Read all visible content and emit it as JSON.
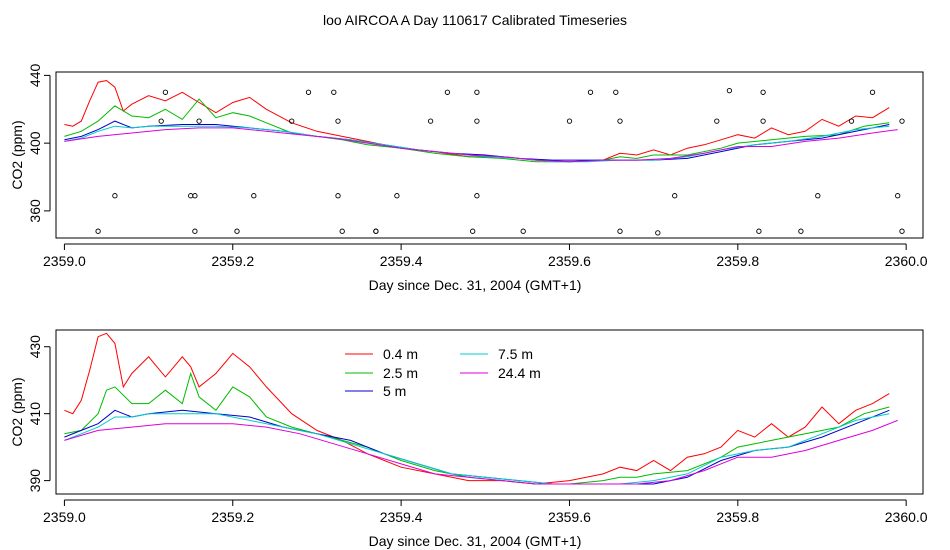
{
  "title": "loo AIRCOA A  Day 110617  Calibrated Timeseries",
  "chart_data": [
    {
      "type": "line",
      "xlabel": "Day since Dec. 31, 2004 (GMT+1)",
      "ylabel": "CO2 (ppm)",
      "xlim": [
        2358.99,
        2360.02
      ],
      "ylim": [
        344,
        442
      ],
      "x_ticks": [
        "2359.0",
        "2359.2",
        "2359.4",
        "2359.6",
        "2359.8",
        "2360.0"
      ],
      "y_ticks": [
        "360",
        "400",
        "440"
      ],
      "grid": false,
      "series": [
        {
          "name": "0.4 m",
          "color": "#ff0000",
          "x": [
            2359.0,
            2359.01,
            2359.02,
            2359.03,
            2359.04,
            2359.05,
            2359.06,
            2359.07,
            2359.08,
            2359.1,
            2359.12,
            2359.14,
            2359.16,
            2359.18,
            2359.2,
            2359.22,
            2359.24,
            2359.27,
            2359.3,
            2359.33,
            2359.36,
            2359.4,
            2359.44,
            2359.48,
            2359.52,
            2359.56,
            2359.6,
            2359.64,
            2359.66,
            2359.68,
            2359.7,
            2359.72,
            2359.74,
            2359.76,
            2359.78,
            2359.8,
            2359.82,
            2359.84,
            2359.86,
            2359.88,
            2359.9,
            2359.92,
            2359.94,
            2359.96,
            2359.98
          ],
          "y": [
            411,
            410,
            413,
            425,
            436,
            437,
            433,
            419,
            423,
            428,
            425,
            430,
            424,
            418,
            424,
            427,
            420,
            412,
            407,
            404,
            401,
            397,
            395,
            392,
            392,
            390,
            389,
            390,
            394,
            393,
            396,
            393,
            397,
            399,
            402,
            405,
            403,
            409,
            405,
            407,
            414,
            410,
            416,
            415,
            421
          ]
        },
        {
          "name": "2.5 m",
          "color": "#00bb00",
          "x": [
            2359.0,
            2359.02,
            2359.04,
            2359.06,
            2359.08,
            2359.1,
            2359.12,
            2359.14,
            2359.16,
            2359.18,
            2359.2,
            2359.22,
            2359.24,
            2359.27,
            2359.3,
            2359.33,
            2359.36,
            2359.4,
            2359.44,
            2359.48,
            2359.52,
            2359.56,
            2359.6,
            2359.64,
            2359.66,
            2359.68,
            2359.7,
            2359.74,
            2359.78,
            2359.8,
            2359.84,
            2359.88,
            2359.92,
            2359.95,
            2359.98
          ],
          "y": [
            404,
            407,
            413,
            422,
            416,
            415,
            420,
            414,
            426,
            415,
            418,
            416,
            412,
            406,
            404,
            402,
            399,
            397,
            394,
            392,
            391,
            389,
            389,
            390,
            392,
            391,
            393,
            393,
            397,
            400,
            402,
            404,
            405,
            410,
            412
          ]
        },
        {
          "name": "5 m",
          "color": "#0000cc",
          "x": [
            2359.0,
            2359.02,
            2359.04,
            2359.06,
            2359.08,
            2359.1,
            2359.14,
            2359.18,
            2359.22,
            2359.26,
            2359.3,
            2359.34,
            2359.38,
            2359.42,
            2359.46,
            2359.5,
            2359.54,
            2359.58,
            2359.62,
            2359.66,
            2359.7,
            2359.74,
            2359.78,
            2359.82,
            2359.86,
            2359.9,
            2359.94,
            2359.98
          ],
          "y": [
            402,
            404,
            408,
            413,
            409,
            410,
            411,
            411,
            409,
            407,
            404,
            402,
            399,
            396,
            394,
            393,
            391,
            390,
            390,
            390,
            390,
            391,
            395,
            399,
            401,
            403,
            407,
            411
          ]
        },
        {
          "name": "7.5 m",
          "color": "#00cccc",
          "x": [
            2359.0,
            2359.02,
            2359.04,
            2359.06,
            2359.08,
            2359.1,
            2359.14,
            2359.18,
            2359.22,
            2359.26,
            2359.3,
            2359.34,
            2359.38,
            2359.42,
            2359.46,
            2359.5,
            2359.54,
            2359.58,
            2359.62,
            2359.66,
            2359.7,
            2359.74,
            2359.78,
            2359.82,
            2359.86,
            2359.9,
            2359.94,
            2359.98
          ],
          "y": [
            401,
            403,
            407,
            410,
            409,
            410,
            410,
            410,
            409,
            407,
            404,
            402,
            399,
            396,
            394,
            392,
            391,
            389,
            389,
            390,
            390,
            392,
            396,
            399,
            401,
            404,
            408,
            410
          ]
        },
        {
          "name": "24.4 m",
          "color": "#dd00dd",
          "x": [
            2359.0,
            2359.04,
            2359.08,
            2359.12,
            2359.16,
            2359.2,
            2359.24,
            2359.28,
            2359.32,
            2359.36,
            2359.4,
            2359.44,
            2359.48,
            2359.52,
            2359.56,
            2359.6,
            2359.64,
            2359.68,
            2359.72,
            2359.76,
            2359.8,
            2359.84,
            2359.88,
            2359.92,
            2359.96,
            2359.99
          ],
          "y": [
            401,
            404,
            406,
            408,
            409,
            409,
            407,
            405,
            403,
            400,
            397,
            395,
            393,
            392,
            390,
            389,
            390,
            390,
            391,
            394,
            398,
            398,
            401,
            403,
            406,
            408
          ]
        }
      ],
      "points": {
        "x": [
          2359.04,
          2359.06,
          2359.12,
          2359.155,
          2359.16,
          2359.205,
          2359.225,
          2359.29,
          2359.32,
          2359.325,
          2359.33,
          2359.37,
          2359.395,
          2359.435,
          2359.455,
          2359.485,
          2359.49,
          2359.545,
          2359.6,
          2359.625,
          2359.655,
          2359.66,
          2359.705,
          2359.725,
          2359.775,
          2359.79,
          2359.825,
          2359.83,
          2359.875,
          2359.895,
          2359.935,
          2359.96,
          2359.99,
          2359.995,
          2359.115,
          2359.155,
          2359.27,
          2359.325,
          2359.49,
          2359.66,
          2359.83,
          2359.995,
          2359.15,
          2359.37,
          2359.49
        ],
        "y": [
          348,
          369,
          430,
          348,
          413,
          348,
          369,
          430,
          430,
          369,
          348,
          348,
          369,
          413,
          430,
          348,
          430,
          348,
          413,
          430,
          430,
          348,
          347,
          369,
          413,
          431,
          348,
          430,
          348,
          369,
          413,
          430,
          369,
          348,
          413,
          369,
          413,
          413,
          413,
          413,
          413,
          413,
          369,
          348,
          369
        ]
      }
    },
    {
      "type": "line",
      "xlabel": "Day since Dec. 31, 2004 (GMT+1)",
      "ylabel": "CO2 (ppm)",
      "xlim": [
        2358.99,
        2360.02
      ],
      "ylim": [
        386,
        435
      ],
      "x_ticks": [
        "2359.0",
        "2359.2",
        "2359.4",
        "2359.6",
        "2359.8",
        "2360.0"
      ],
      "y_ticks": [
        "390",
        "410",
        "430"
      ],
      "grid": false,
      "legend": {
        "placement": "top-center",
        "columns": 2
      },
      "series": [
        {
          "name": "0.4 m",
          "color": "#ff0000",
          "x": [
            2359.0,
            2359.01,
            2359.02,
            2359.03,
            2359.04,
            2359.05,
            2359.06,
            2359.07,
            2359.08,
            2359.1,
            2359.12,
            2359.14,
            2359.15,
            2359.16,
            2359.18,
            2359.2,
            2359.22,
            2359.24,
            2359.27,
            2359.3,
            2359.33,
            2359.36,
            2359.4,
            2359.44,
            2359.48,
            2359.52,
            2359.56,
            2359.6,
            2359.64,
            2359.66,
            2359.68,
            2359.7,
            2359.72,
            2359.74,
            2359.76,
            2359.78,
            2359.8,
            2359.82,
            2359.84,
            2359.86,
            2359.88,
            2359.9,
            2359.92,
            2359.94,
            2359.96,
            2359.98
          ],
          "y": [
            411,
            410,
            414,
            423,
            433,
            434,
            431,
            418,
            422,
            427,
            421,
            427,
            424,
            418,
            422,
            428,
            424,
            418,
            410,
            405,
            402,
            398,
            394,
            392,
            390,
            390,
            389,
            390,
            392,
            394,
            393,
            396,
            393,
            397,
            398,
            400,
            405,
            403,
            407,
            403,
            406,
            412,
            407,
            411,
            413,
            416
          ]
        },
        {
          "name": "2.5 m",
          "color": "#00bb00",
          "x": [
            2359.0,
            2359.02,
            2359.04,
            2359.05,
            2359.06,
            2359.08,
            2359.1,
            2359.12,
            2359.14,
            2359.15,
            2359.16,
            2359.18,
            2359.2,
            2359.22,
            2359.24,
            2359.27,
            2359.3,
            2359.33,
            2359.36,
            2359.4,
            2359.44,
            2359.48,
            2359.52,
            2359.56,
            2359.6,
            2359.64,
            2359.66,
            2359.68,
            2359.7,
            2359.74,
            2359.78,
            2359.8,
            2359.84,
            2359.88,
            2359.92,
            2359.95,
            2359.98
          ],
          "y": [
            404,
            405,
            410,
            417,
            418,
            413,
            413,
            417,
            413,
            422,
            415,
            411,
            418,
            415,
            409,
            406,
            404,
            402,
            400,
            396,
            393,
            391,
            390,
            389,
            389,
            390,
            391,
            391,
            392,
            393,
            397,
            400,
            402,
            404,
            406,
            410,
            412
          ]
        },
        {
          "name": "5 m",
          "color": "#0000cc",
          "x": [
            2359.0,
            2359.02,
            2359.04,
            2359.06,
            2359.08,
            2359.1,
            2359.14,
            2359.18,
            2359.22,
            2359.26,
            2359.3,
            2359.34,
            2359.38,
            2359.42,
            2359.46,
            2359.5,
            2359.54,
            2359.58,
            2359.62,
            2359.66,
            2359.7,
            2359.74,
            2359.78,
            2359.82,
            2359.86,
            2359.9,
            2359.94,
            2359.98
          ],
          "y": [
            403,
            405,
            407,
            411,
            409,
            410,
            411,
            410,
            409,
            406,
            404,
            402,
            398,
            395,
            392,
            391,
            390,
            389,
            389,
            389,
            389,
            391,
            396,
            399,
            400,
            403,
            407,
            411
          ]
        },
        {
          "name": "7.5 m",
          "color": "#00cccc",
          "x": [
            2359.0,
            2359.02,
            2359.04,
            2359.06,
            2359.08,
            2359.1,
            2359.14,
            2359.18,
            2359.22,
            2359.26,
            2359.3,
            2359.34,
            2359.38,
            2359.42,
            2359.46,
            2359.5,
            2359.54,
            2359.58,
            2359.62,
            2359.66,
            2359.7,
            2359.74,
            2359.78,
            2359.82,
            2359.86,
            2359.9,
            2359.94,
            2359.98
          ],
          "y": [
            402,
            404,
            406,
            409,
            409,
            410,
            410,
            410,
            408,
            406,
            404,
            401,
            398,
            395,
            392,
            391,
            390,
            389,
            389,
            389,
            390,
            392,
            397,
            399,
            400,
            404,
            408,
            410
          ]
        },
        {
          "name": "24.4 m",
          "color": "#dd00dd",
          "x": [
            2359.0,
            2359.04,
            2359.08,
            2359.12,
            2359.16,
            2359.2,
            2359.24,
            2359.28,
            2359.32,
            2359.36,
            2359.4,
            2359.44,
            2359.48,
            2359.52,
            2359.56,
            2359.6,
            2359.64,
            2359.68,
            2359.72,
            2359.76,
            2359.8,
            2359.84,
            2359.88,
            2359.92,
            2359.96,
            2359.99
          ],
          "y": [
            402,
            405,
            406,
            407,
            407,
            407,
            406,
            404,
            401,
            398,
            395,
            392,
            391,
            390,
            389,
            389,
            389,
            389,
            390,
            393,
            397,
            397,
            399,
            402,
            405,
            408
          ]
        }
      ]
    }
  ]
}
